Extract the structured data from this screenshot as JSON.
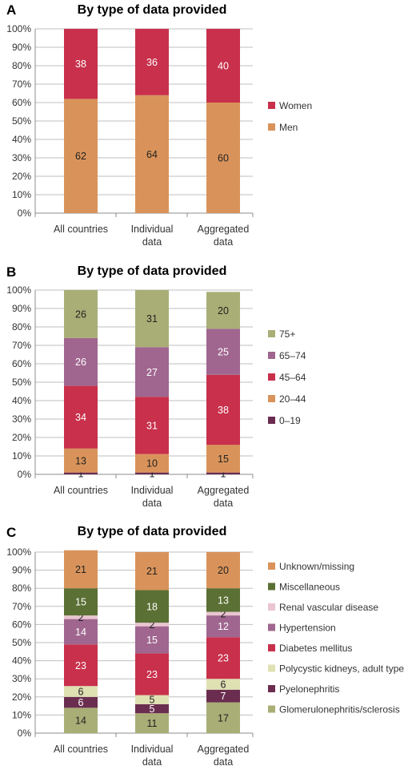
{
  "chart_data": [
    {
      "panel": "A",
      "type": "bar",
      "stacked": true,
      "title": "By type of data provided",
      "categories": [
        [
          "All countries"
        ],
        [
          "Individual",
          "data"
        ],
        [
          "Aggregated",
          "data"
        ]
      ],
      "ylim": [
        0,
        100
      ],
      "yticks": [
        "0%",
        "10%",
        "20%",
        "30%",
        "40%",
        "50%",
        "60%",
        "70%",
        "80%",
        "90%",
        "100%"
      ],
      "grid": true,
      "legend_position": "right",
      "series": [
        {
          "name": "Men",
          "color": "#d9935a",
          "label_color": "#222222",
          "values": [
            62,
            64,
            60
          ]
        },
        {
          "name": "Women",
          "color": "#c8304b",
          "label_color": "#ffffff",
          "values": [
            38,
            36,
            40
          ]
        }
      ]
    },
    {
      "panel": "B",
      "type": "bar",
      "stacked": true,
      "title": "By type of data provided",
      "categories": [
        [
          "All countries"
        ],
        [
          "Individual",
          "data"
        ],
        [
          "Aggregated",
          "data"
        ]
      ],
      "ylim": [
        0,
        100
      ],
      "yticks": [
        "0%",
        "10%",
        "20%",
        "30%",
        "40%",
        "50%",
        "60%",
        "70%",
        "80%",
        "90%",
        "100%"
      ],
      "grid": true,
      "legend_position": "right",
      "series": [
        {
          "name": "0–19",
          "color": "#6b2d4f",
          "label_color": "#222222",
          "values": [
            1,
            1,
            1
          ]
        },
        {
          "name": "20–44",
          "color": "#d9935a",
          "label_color": "#222222",
          "values": [
            13,
            10,
            15
          ]
        },
        {
          "name": "45–64",
          "color": "#c8304b",
          "label_color": "#ffffff",
          "values": [
            34,
            31,
            38
          ]
        },
        {
          "name": "65–74",
          "color": "#a0668f",
          "label_color": "#ffffff",
          "values": [
            26,
            27,
            25
          ]
        },
        {
          "name": "75+",
          "color": "#a9ae76",
          "label_color": "#222222",
          "values": [
            26,
            31,
            20
          ]
        }
      ]
    },
    {
      "panel": "C",
      "type": "bar",
      "stacked": true,
      "title": "By type of data provided",
      "categories": [
        [
          "All countries"
        ],
        [
          "Individual",
          "data"
        ],
        [
          "Aggregated",
          "data"
        ]
      ],
      "ylim": [
        0,
        100
      ],
      "yticks": [
        "0%",
        "10%",
        "20%",
        "30%",
        "40%",
        "50%",
        "60%",
        "70%",
        "80%",
        "90%",
        "100%"
      ],
      "grid": true,
      "legend_position": "right",
      "series": [
        {
          "name": "Glomerulonephritis/sclerosis",
          "color": "#a9ae76",
          "label_color": "#222222",
          "values": [
            14,
            11,
            17
          ]
        },
        {
          "name": "Pyelonephritis",
          "color": "#6b2d4f",
          "label_color": "#ffffff",
          "values": [
            6,
            5,
            7
          ]
        },
        {
          "name": "Polycystic kidneys, adult type",
          "color": "#dfe1b3",
          "label_color": "#222222",
          "values": [
            6,
            5,
            6
          ]
        },
        {
          "name": "Diabetes mellitus",
          "color": "#c8304b",
          "label_color": "#ffffff",
          "values": [
            23,
            23,
            23
          ]
        },
        {
          "name": "Hypertension",
          "color": "#a0668f",
          "label_color": "#ffffff",
          "values": [
            14,
            15,
            12
          ]
        },
        {
          "name": "Renal vascular disease",
          "color": "#e9c5d0",
          "label_color": "#222222",
          "values": [
            2,
            2,
            2
          ]
        },
        {
          "name": "Miscellaneous",
          "color": "#5b7034",
          "label_color": "#ffffff",
          "values": [
            15,
            18,
            13
          ]
        },
        {
          "name": "Unknown/missing",
          "color": "#d9935a",
          "label_color": "#222222",
          "values": [
            21,
            21,
            20
          ]
        }
      ]
    }
  ]
}
